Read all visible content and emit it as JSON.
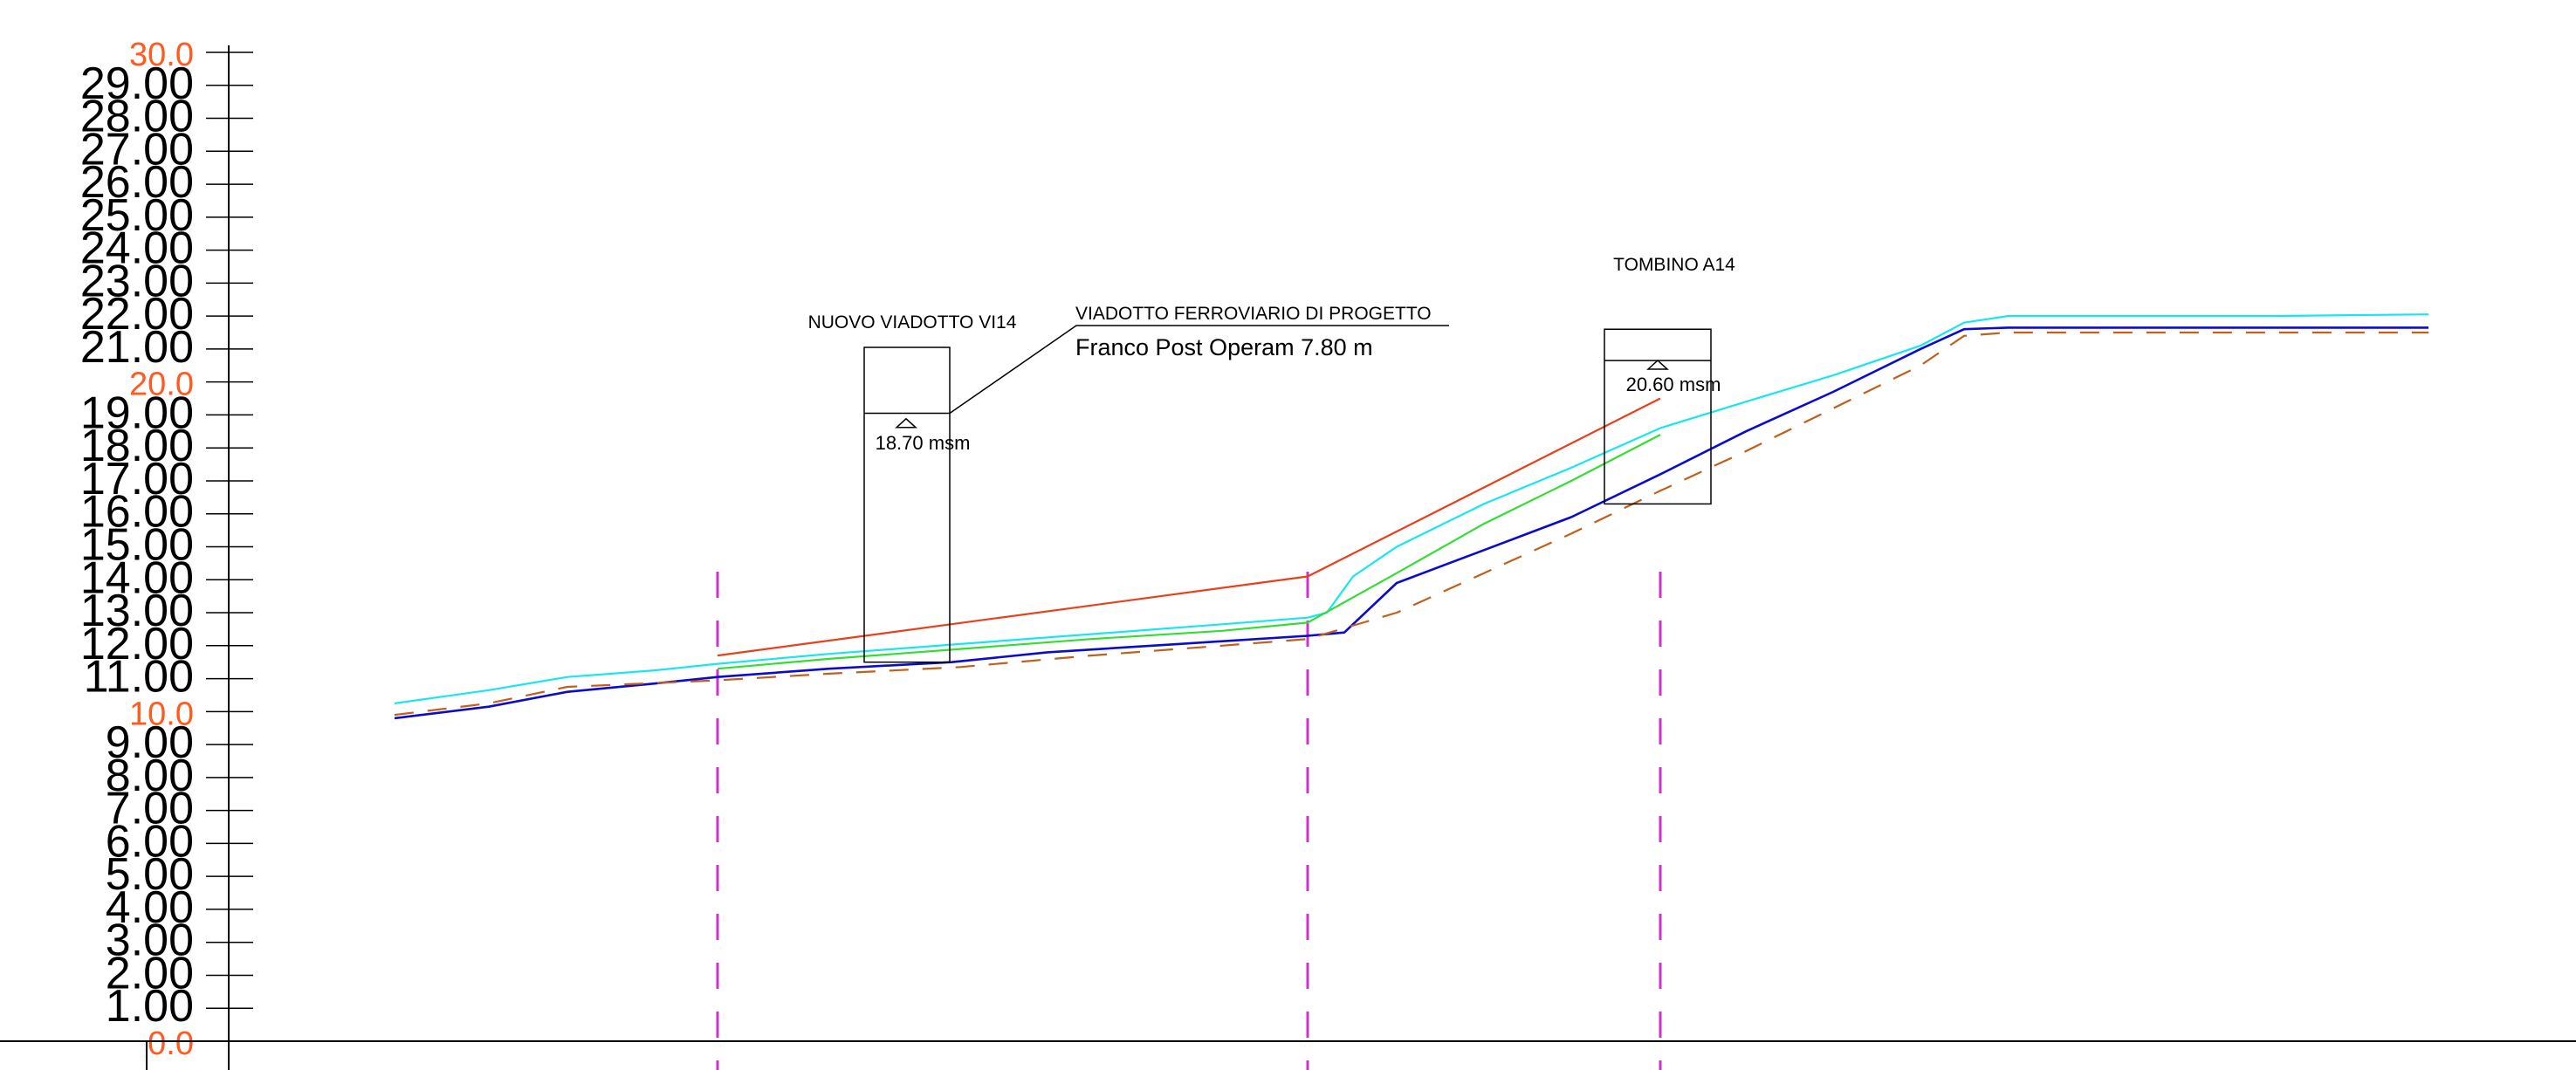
{
  "colors": {
    "axis": "#000000",
    "tick_label": "#000000",
    "tick_label_major": "#ff5a1f",
    "embankment_line": "#e8401c",
    "cyan_line": "#18e6ee",
    "green_line": "#33dd33",
    "blue_line": "#0b0bcc",
    "dashed_line": "#c0601a",
    "section_marker": "#cc33cc",
    "structure": "#000000"
  },
  "labels": {
    "viaduct_name": "NUOVO VIADOTTO VI14",
    "viaduct_elev": "18.70 msm",
    "callout_title": "VIADOTTO FERROVIARIO DI PROGETTO",
    "callout_text": "Franco Post Operam 7.80 m",
    "culvert_name": "TOMBINO A14",
    "culvert_elev": "20.60 msm"
  },
  "chart_data": {
    "type": "line",
    "title": "",
    "xlabel": "",
    "ylabel": "",
    "ylim": [
      0,
      30
    ],
    "xlim": [
      0,
      2951
    ],
    "grid": false,
    "y_ticks": [
      {
        "v": 0,
        "label": "0.0",
        "major": true
      },
      {
        "v": 1,
        "label": "1.00",
        "major": false
      },
      {
        "v": 2,
        "label": "2.00",
        "major": false
      },
      {
        "v": 3,
        "label": "3.00",
        "major": false
      },
      {
        "v": 4,
        "label": "4.00",
        "major": false
      },
      {
        "v": 5,
        "label": "5.00",
        "major": false
      },
      {
        "v": 6,
        "label": "6.00",
        "major": false
      },
      {
        "v": 7,
        "label": "7.00",
        "major": false
      },
      {
        "v": 8,
        "label": "8.00",
        "major": false
      },
      {
        "v": 9,
        "label": "9.00",
        "major": false
      },
      {
        "v": 10,
        "label": "10.0",
        "major": true
      },
      {
        "v": 11,
        "label": "11.00",
        "major": false
      },
      {
        "v": 12,
        "label": "12.00",
        "major": false
      },
      {
        "v": 13,
        "label": "13.00",
        "major": false
      },
      {
        "v": 14,
        "label": "14.00",
        "major": false
      },
      {
        "v": 15,
        "label": "15.00",
        "major": false
      },
      {
        "v": 16,
        "label": "16.00",
        "major": false
      },
      {
        "v": 17,
        "label": "17.00",
        "major": false
      },
      {
        "v": 18,
        "label": "18.00",
        "major": false
      },
      {
        "v": 19,
        "label": "19.00",
        "major": false
      },
      {
        "v": 20,
        "label": "20.0",
        "major": true
      },
      {
        "v": 21,
        "label": "21.00",
        "major": false
      },
      {
        "v": 22,
        "label": "22.00",
        "major": false
      },
      {
        "v": 23,
        "label": "23.00",
        "major": false
      },
      {
        "v": 24,
        "label": "24.00",
        "major": false
      },
      {
        "v": 25,
        "label": "25.00",
        "major": false
      },
      {
        "v": 26,
        "label": "26.00",
        "major": false
      },
      {
        "v": 27,
        "label": "27.00",
        "major": false
      },
      {
        "v": 28,
        "label": "28.00",
        "major": false
      },
      {
        "v": 29,
        "label": "29.00",
        "major": false
      },
      {
        "v": 30,
        "label": "30.0",
        "major": true
      }
    ],
    "section_markers_x": [
      822,
      1498,
      1902
    ],
    "series": [
      {
        "color_key": "cyan_line",
        "dash": false,
        "points": [
          [
            452,
            10.25
          ],
          [
            560,
            10.65
          ],
          [
            650,
            11.05
          ],
          [
            750,
            11.25
          ],
          [
            822,
            11.45
          ],
          [
            950,
            11.75
          ],
          [
            1100,
            12.05
          ],
          [
            1250,
            12.35
          ],
          [
            1400,
            12.65
          ],
          [
            1498,
            12.85
          ],
          [
            1520,
            13.0
          ],
          [
            1550,
            14.1
          ],
          [
            1600,
            15.0
          ],
          [
            1700,
            16.3
          ],
          [
            1800,
            17.4
          ],
          [
            1902,
            18.6
          ],
          [
            2000,
            19.4
          ],
          [
            2100,
            20.2
          ],
          [
            2200,
            21.1
          ],
          [
            2250,
            21.8
          ],
          [
            2300,
            22.0
          ],
          [
            2400,
            22.0
          ],
          [
            2600,
            22.0
          ],
          [
            2782,
            22.05
          ]
        ]
      },
      {
        "color_key": "green_line",
        "dash": false,
        "points": [
          [
            822,
            11.3
          ],
          [
            950,
            11.6
          ],
          [
            1100,
            11.9
          ],
          [
            1250,
            12.2
          ],
          [
            1400,
            12.45
          ],
          [
            1498,
            12.7
          ],
          [
            1600,
            14.2
          ],
          [
            1700,
            15.7
          ],
          [
            1800,
            17.0
          ],
          [
            1902,
            18.4
          ]
        ]
      },
      {
        "color_key": "blue_line",
        "dash": false,
        "points": [
          [
            452,
            9.8
          ],
          [
            560,
            10.15
          ],
          [
            650,
            10.6
          ],
          [
            750,
            10.85
          ],
          [
            822,
            11.05
          ],
          [
            950,
            11.3
          ],
          [
            1090,
            11.5
          ],
          [
            1200,
            11.8
          ],
          [
            1350,
            12.05
          ],
          [
            1498,
            12.3
          ],
          [
            1540,
            12.4
          ],
          [
            1600,
            13.9
          ],
          [
            1700,
            14.9
          ],
          [
            1800,
            15.9
          ],
          [
            1902,
            17.2
          ],
          [
            2000,
            18.5
          ],
          [
            2100,
            19.7
          ],
          [
            2200,
            21.0
          ],
          [
            2250,
            21.6
          ],
          [
            2300,
            21.65
          ],
          [
            2500,
            21.65
          ],
          [
            2782,
            21.65
          ]
        ]
      },
      {
        "color_key": "dashed_line",
        "dash": true,
        "points": [
          [
            452,
            9.9
          ],
          [
            560,
            10.25
          ],
          [
            650,
            10.75
          ],
          [
            822,
            10.95
          ],
          [
            950,
            11.15
          ],
          [
            1100,
            11.35
          ],
          [
            1250,
            11.7
          ],
          [
            1400,
            12.0
          ],
          [
            1498,
            12.2
          ],
          [
            1600,
            13.0
          ],
          [
            1700,
            14.2
          ],
          [
            1800,
            15.4
          ],
          [
            1902,
            16.7
          ],
          [
            2000,
            17.9
          ],
          [
            2100,
            19.2
          ],
          [
            2200,
            20.5
          ],
          [
            2250,
            21.4
          ],
          [
            2300,
            21.5
          ],
          [
            2782,
            21.5
          ]
        ]
      },
      {
        "color_key": "embankment_line",
        "dash": false,
        "points": [
          [
            822,
            11.7
          ],
          [
            1498,
            14.1
          ],
          [
            1902,
            19.5
          ]
        ]
      }
    ],
    "structures": [
      {
        "name_key": "viaduct_name",
        "elev_key": "viaduct_elev",
        "x0": 990,
        "x1": 1088,
        "top": 21.05,
        "deck": 19.05,
        "bottom": 11.5,
        "level": 18.7
      },
      {
        "name_key": "culvert_name",
        "elev_key": "culvert_elev",
        "x0": 1838,
        "x1": 1960,
        "top": 21.6,
        "deck": 20.65,
        "bottom": 16.3,
        "level": 20.6
      }
    ]
  }
}
